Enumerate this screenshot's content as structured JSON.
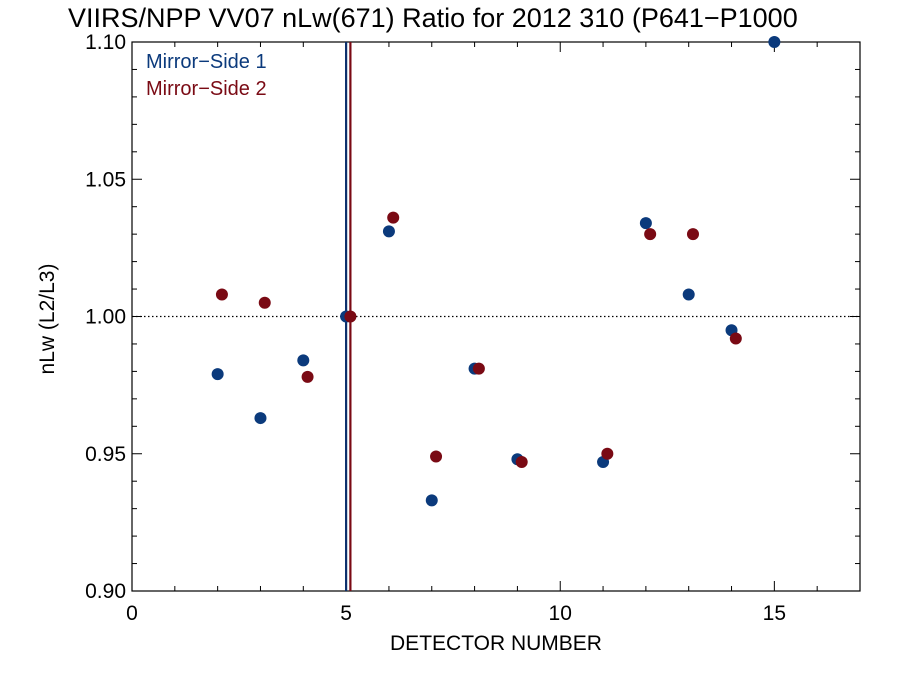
{
  "chart_data": {
    "type": "scatter",
    "title": "VIIRS/NPP VV07 nLw(671) Ratio for 2012 310 (P641−P1000",
    "xlabel": "DETECTOR NUMBER",
    "ylabel": "nLw (L2/L3)",
    "xlim": [
      0,
      17
    ],
    "ylim": [
      0.9,
      1.1
    ],
    "x_major_ticks": [
      0,
      5,
      10,
      15
    ],
    "y_major_ticks": [
      0.9,
      0.95,
      1.0,
      1.05,
      1.1
    ],
    "x_tick_labels": [
      "0",
      "5",
      "10",
      "15"
    ],
    "y_tick_labels": [
      "0.90",
      "0.95",
      "1.00",
      "1.05",
      "1.10"
    ],
    "reference_line_y": 1.0,
    "vertical_lines": [
      {
        "x": 5.0,
        "color": "#0b2f6b"
      },
      {
        "x": 5.1,
        "color": "#7a0a14"
      }
    ],
    "legend_position": "top-left",
    "series": [
      {
        "name": "Mirror−Side 1",
        "color": "#0b3a7c",
        "x": [
          2,
          3,
          4,
          5,
          6,
          7,
          8,
          9,
          11,
          12,
          13,
          14,
          15
        ],
        "y": [
          0.979,
          0.963,
          0.984,
          1.0,
          1.031,
          0.933,
          0.981,
          0.948,
          0.947,
          1.034,
          1.008,
          0.995,
          1.1
        ]
      },
      {
        "name": "Mirror−Side 2",
        "color": "#7a0a14",
        "x": [
          2.1,
          3.1,
          4.1,
          5.1,
          6.1,
          7.1,
          8.1,
          9.1,
          11.1,
          12.1,
          13.1,
          14.1
        ],
        "y": [
          1.008,
          1.005,
          0.978,
          1.0,
          1.036,
          0.949,
          0.981,
          0.947,
          0.95,
          1.03,
          1.03,
          0.992
        ]
      }
    ]
  }
}
